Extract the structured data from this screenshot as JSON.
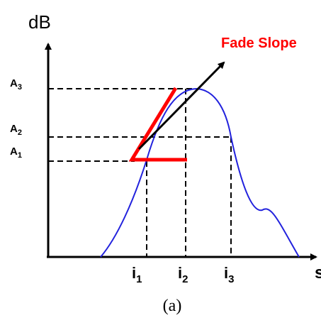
{
  "axes": {
    "y_label": "dB",
    "x_label": "s"
  },
  "levels": [
    {
      "name": "A",
      "sub": "3"
    },
    {
      "name": "A",
      "sub": "2"
    },
    {
      "name": "A",
      "sub": "1"
    }
  ],
  "instants": [
    {
      "name": "i",
      "sub": "1"
    },
    {
      "name": "i",
      "sub": "2"
    },
    {
      "name": "i",
      "sub": "3"
    }
  ],
  "annotation": {
    "text": "Fade Slope"
  },
  "caption": "(a)",
  "colors": {
    "curve": "#2222dd",
    "fade_slope": "#ff0000",
    "axis": "#000000",
    "arrow": "#000000"
  }
}
